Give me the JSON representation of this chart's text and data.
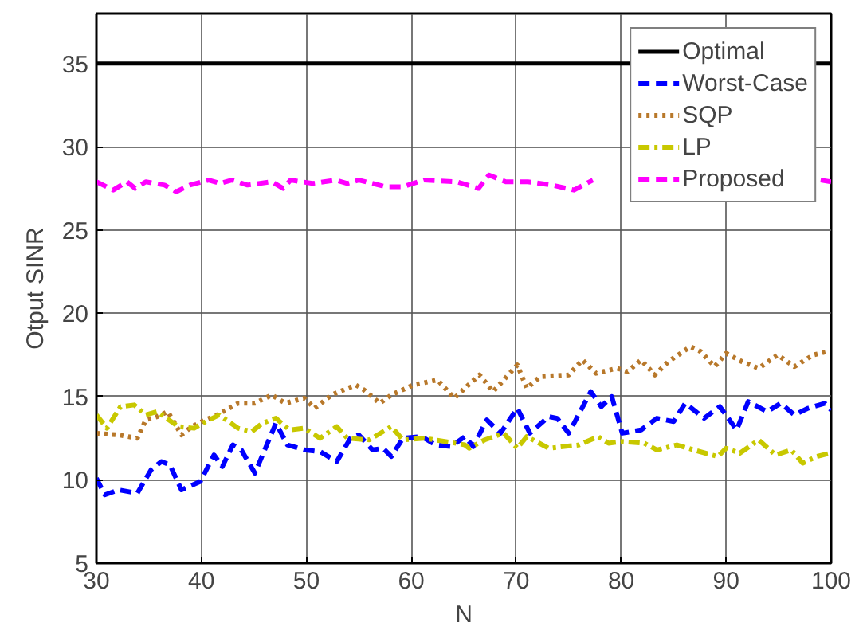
{
  "chart_data": {
    "type": "line",
    "xlabel": "N",
    "ylabel": "Otput SINR",
    "xlim": [
      30,
      100
    ],
    "ylim": [
      5,
      38
    ],
    "xticks": [
      30,
      40,
      50,
      60,
      70,
      80,
      90,
      100
    ],
    "yticks": [
      5,
      10,
      15,
      20,
      25,
      30,
      35
    ],
    "grid": true,
    "legend": "top right",
    "series": [
      {
        "name": "Optimal",
        "color": "#000000",
        "line_style": "solid",
        "x": [
          30,
          100
        ],
        "values": [
          35,
          35
        ]
      },
      {
        "name": "Worst-Case",
        "color": "#0000ff",
        "line_style": "dashed",
        "x": [
          30,
          30.8,
          32.1,
          33.9,
          35.2,
          36.2,
          37,
          38.1,
          39.9,
          41.2,
          42,
          43,
          43.8,
          45.1,
          47.1,
          48.2,
          49.8,
          51.3,
          52.9,
          54.2,
          55,
          56.3,
          57.3,
          58.1,
          59.2,
          61,
          62.3,
          63.8,
          65.1,
          65.9,
          67.2,
          68.5,
          70.1,
          71.3,
          73.1,
          73.9,
          75,
          77.1,
          78.1,
          79.1,
          80.1,
          81.9,
          83.4,
          85,
          86.1,
          87.9,
          89.4,
          91,
          92.1,
          93.9,
          95.2,
          96.5,
          97.8,
          99.4,
          100
        ],
        "values": [
          10.1,
          9.1,
          9.4,
          9.2,
          10.6,
          11.1,
          10.9,
          9.4,
          9.9,
          11.5,
          10.8,
          12.1,
          11.8,
          10.4,
          13.4,
          12.1,
          11.8,
          11.7,
          11.1,
          12.5,
          12.7,
          11.8,
          11.9,
          11.4,
          12.5,
          12.6,
          12.1,
          12.0,
          12.6,
          12.0,
          13.6,
          12.8,
          14.3,
          12.8,
          13.8,
          13.7,
          12.8,
          15.3,
          14.4,
          15.0,
          12.8,
          13.0,
          13.7,
          13.5,
          14.6,
          13.7,
          14.4,
          13.0,
          14.7,
          14.1,
          14.6,
          13.9,
          14.3,
          14.6,
          14.2
        ]
      },
      {
        "name": "SQP",
        "color": "#b8782a",
        "line_style": "dotted",
        "x": [
          30,
          32.1,
          33.9,
          34.7,
          35.8,
          36.8,
          38.1,
          39.1,
          40.4,
          41.5,
          43.5,
          45.1,
          46.7,
          48,
          49.8,
          50.8,
          52.4,
          54.7,
          55.5,
          57,
          58.1,
          60.2,
          62.5,
          64.1,
          65.1,
          66.5,
          67.8,
          70.1,
          71,
          72.3,
          75,
          76.3,
          77.6,
          79.6,
          80.6,
          81.9,
          83.2,
          84.5,
          86.6,
          87.6,
          88.9,
          90,
          91.5,
          93.1,
          94.9,
          96.5,
          98.3,
          99.6
        ],
        "values": [
          12.8,
          12.7,
          12.5,
          13.6,
          13.8,
          14.1,
          12.7,
          13.2,
          13.6,
          13.9,
          14.6,
          14.6,
          15.1,
          14.6,
          14.9,
          14.3,
          15.1,
          15.7,
          15.4,
          14.6,
          15.1,
          15.7,
          16.0,
          14.9,
          15.5,
          16.3,
          15.3,
          16.9,
          15.5,
          16.2,
          16.3,
          17.2,
          16.4,
          16.7,
          16.5,
          17.2,
          16.3,
          17.1,
          18.0,
          17.7,
          16.8,
          17.6,
          17.1,
          16.7,
          17.5,
          16.8,
          17.5,
          17.7
        ]
      },
      {
        "name": "LP",
        "color": "#c8c800",
        "line_style": "dashdot",
        "x": [
          30,
          31,
          32.3,
          33.6,
          34.7,
          35.8,
          37.8,
          39.3,
          40.1,
          41.7,
          43.5,
          44.8,
          45.8,
          47.1,
          48.4,
          49.8,
          51.3,
          52.9,
          53.9,
          56,
          58.1,
          59.2,
          61.2,
          63.3,
          65.1,
          65.5,
          67,
          68.8,
          70.1,
          71,
          73.1,
          76,
          77.8,
          78.8,
          80.1,
          82.2,
          83.4,
          85.3,
          86.9,
          89.2,
          90,
          91.3,
          93.1,
          94.7,
          96.2,
          97.3,
          98.6,
          99.9
        ],
        "values": [
          13.9,
          13.1,
          14.4,
          14.5,
          13.9,
          14.1,
          13.2,
          13.1,
          13.4,
          13.9,
          13.1,
          12.9,
          13.4,
          13.7,
          13.0,
          13.1,
          12.5,
          13.2,
          12.5,
          12.4,
          13.2,
          12.4,
          12.5,
          12.3,
          12.1,
          11.9,
          12.4,
          12.8,
          11.9,
          12.6,
          11.9,
          12.1,
          12.6,
          12.2,
          12.3,
          12.2,
          11.8,
          12.1,
          11.8,
          11.4,
          11.9,
          11.6,
          12.4,
          11.5,
          11.8,
          11.0,
          11.4,
          11.6
        ]
      },
      {
        "name": "Proposed",
        "color": "#ff00ff",
        "line_style": "dashed",
        "x": [
          30,
          31.6,
          32.9,
          33.7,
          34.7,
          36.5,
          37.6,
          38.9,
          40.7,
          41.8,
          42.9,
          44.4,
          46.7,
          47.8,
          48.5,
          50.6,
          52.8,
          53.9,
          55,
          57.6,
          59.2,
          61.2,
          64.3,
          66.4,
          67.4,
          69,
          71.1,
          73.4,
          75.5,
          77.3,
          80,
          90,
          99,
          100
        ],
        "values": [
          27.9,
          27.4,
          27.9,
          27.5,
          27.9,
          27.7,
          27.3,
          27.7,
          28.0,
          27.8,
          28.0,
          27.7,
          27.9,
          27.5,
          28.0,
          27.8,
          28.0,
          27.8,
          28.0,
          27.6,
          27.6,
          28.0,
          27.9,
          27.5,
          28.3,
          27.9,
          27.9,
          27.7,
          27.4,
          28.0,
          null,
          null,
          28.0,
          27.9
        ]
      }
    ]
  }
}
